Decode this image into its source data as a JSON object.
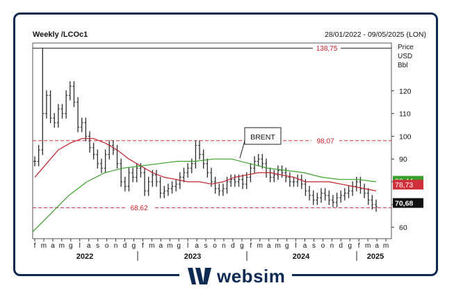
{
  "header": {
    "title": "Weekly /LCOc1",
    "range": "28/01/2022 - 09/05/2025 (LON)"
  },
  "brand": {
    "name": "websim"
  },
  "chart_data": {
    "type": "line",
    "style": "ohlc-weekly-with-moving-averages",
    "instrument": "BRENT",
    "yaxis_title": [
      "Price",
      "USD",
      "Bbl"
    ],
    "ylim": [
      55,
      141
    ],
    "yticks": [
      60,
      70,
      80,
      90,
      100,
      110,
      120
    ],
    "x_month_labels": [
      "f",
      "m",
      "a",
      "m",
      "g",
      "l",
      "a",
      "s",
      "o",
      "n",
      "d",
      "g",
      "f",
      "m",
      "a",
      "m",
      "g",
      "l",
      "a",
      "s",
      "o",
      "n",
      "d",
      "g",
      "f",
      "m",
      "a",
      "m",
      "g",
      "l",
      "a",
      "s",
      "o",
      "n",
      "d",
      "g",
      "f",
      "m",
      "a",
      "m"
    ],
    "year_labels": [
      "2022",
      "2023",
      "2024",
      "2025"
    ],
    "series": [
      {
        "name": "Brent weekly closes",
        "color": "#333333",
        "values": [
          89,
          94,
          110,
          118,
          108,
          106,
          112,
          110,
          118,
          122,
          115,
          104,
          106,
          100,
          95,
          92,
          88,
          86,
          92,
          96,
          94,
          88,
          80,
          78,
          84,
          82,
          86,
          84,
          76,
          80,
          83,
          80,
          75,
          76,
          77,
          78,
          79,
          82,
          84,
          86,
          88,
          96,
          92,
          88,
          84,
          80,
          77,
          76,
          77,
          80,
          81,
          80,
          81,
          79,
          82,
          86,
          89,
          90,
          88,
          84,
          82,
          83,
          85,
          84,
          82,
          80,
          80,
          81,
          79,
          76,
          74,
          72,
          73,
          75,
          74,
          72,
          71,
          73,
          74,
          75,
          76,
          78,
          80,
          77,
          75,
          72,
          70,
          69
        ]
      },
      {
        "name": "Moving average (short)",
        "color": "#c0202a",
        "values": [
          82,
          88,
          94,
          97,
          99,
          99,
          97,
          94,
          90,
          87,
          84,
          82,
          81,
          80,
          80,
          79,
          80,
          82,
          83,
          84,
          84,
          83,
          82,
          80,
          80,
          80,
          79,
          78,
          77,
          76
        ]
      },
      {
        "name": "Moving average (long)",
        "color": "#3aa02a",
        "values": [
          58,
          66,
          74,
          80,
          84,
          86,
          87,
          88,
          89,
          89,
          90,
          90,
          88,
          86,
          85,
          84,
          82,
          81,
          81,
          80
        ]
      }
    ],
    "reference_lines": [
      {
        "label": "138,75",
        "value": 138.75,
        "style": "solid",
        "color": "#222222"
      },
      {
        "label": "98,07",
        "value": 98.07,
        "style": "dashed",
        "color": "#d0303a"
      },
      {
        "label": "68,62",
        "value": 68.62,
        "style": "dashed",
        "color": "#d0303a"
      }
    ],
    "price_badges": [
      {
        "label": "80,44",
        "value": 80.44,
        "color": "#3aa02a"
      },
      {
        "label": "78,73",
        "value": 78.73,
        "color": "#d0303a"
      },
      {
        "label": "70,68",
        "value": 70.68,
        "color": "#111111"
      }
    ],
    "annotation": {
      "text": "BRENT",
      "value": 92
    }
  }
}
